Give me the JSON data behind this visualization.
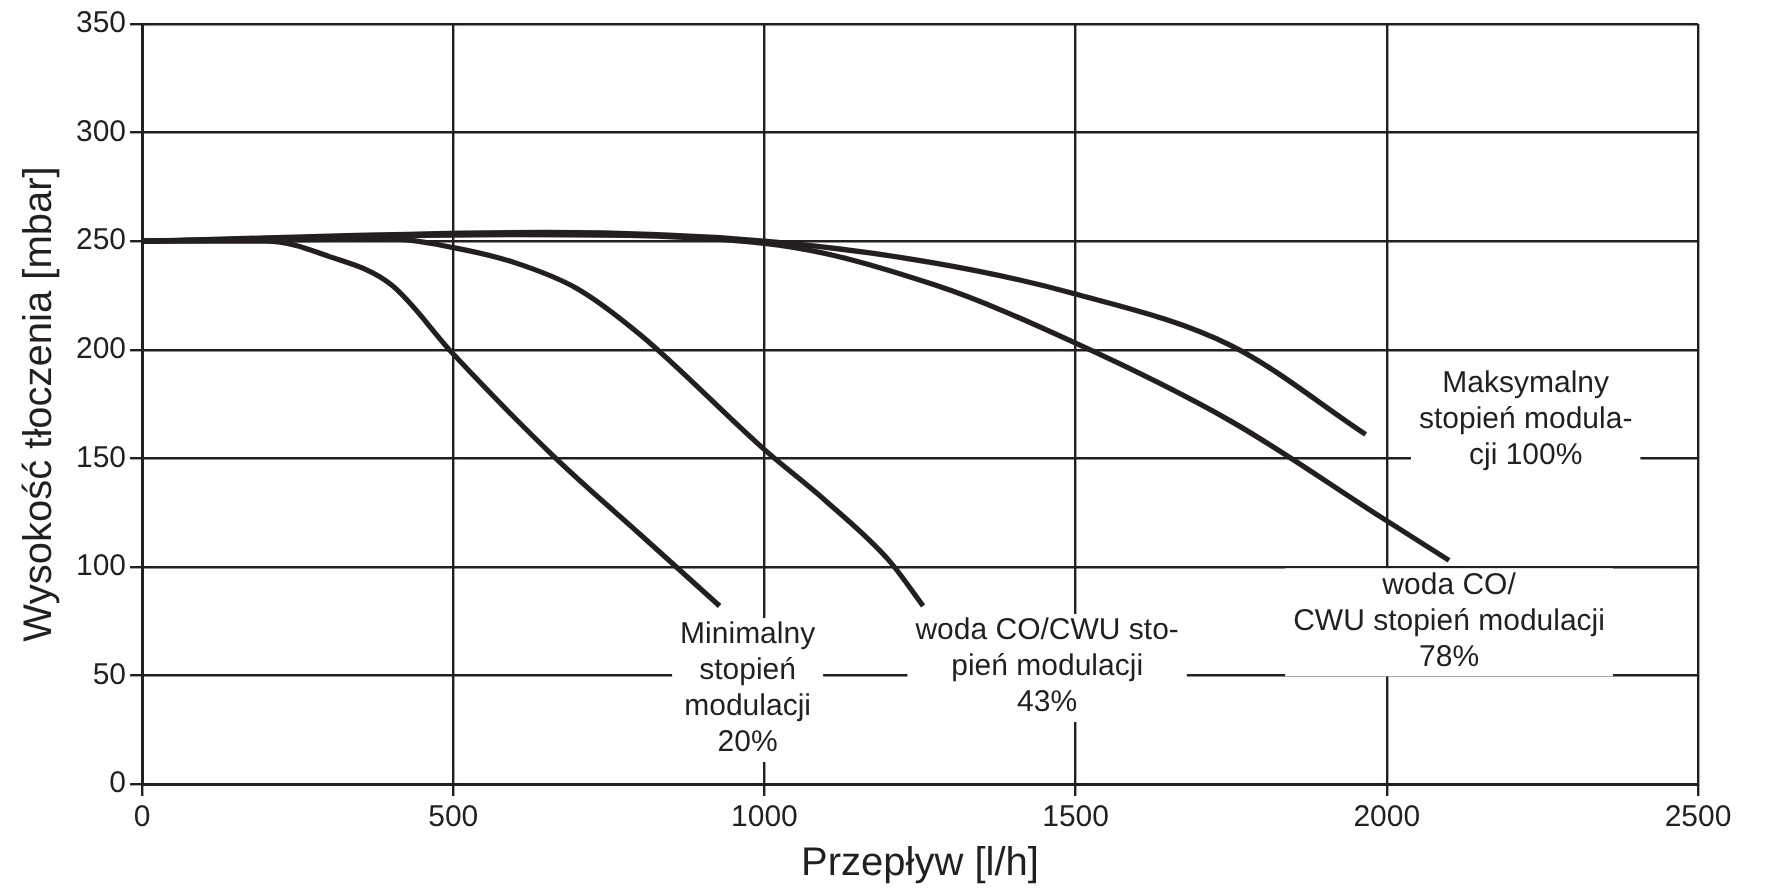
{
  "chart_data": {
    "type": "line",
    "xlabel": "Przepływ [l/h]",
    "ylabel": "Wysokość tłoczenia [mbar]",
    "xlim": [
      0,
      2500
    ],
    "xticks": [
      0,
      500,
      1000,
      1500,
      2000,
      2500
    ],
    "ylim": [
      0,
      350
    ],
    "yticks": [
      0,
      50,
      100,
      150,
      200,
      250,
      300,
      350
    ],
    "grid": true,
    "legend": false,
    "marker": "none",
    "line_style": "solid",
    "series": [
      {
        "color": "#231f20",
        "x": [
          0,
          200,
          300,
          400,
          500,
          661,
          800,
          928
        ],
        "values": [
          250,
          250,
          243,
          230,
          198,
          151,
          115,
          82
        ]
      },
      {
        "color": "#231f20",
        "x": [
          0,
          400,
          500,
          600,
          700,
          800,
          1000,
          1100,
          1200,
          1255
        ],
        "values": [
          250,
          251,
          247,
          240,
          228,
          207,
          154,
          130,
          103,
          82
        ]
      },
      {
        "color": "#231f20",
        "x": [
          0,
          600,
          1000,
          1272,
          1500,
          1750,
          1990,
          2100
        ],
        "values": [
          250,
          253,
          249,
          230,
          203,
          167,
          123,
          103
        ]
      },
      {
        "color": "#231f20",
        "x": [
          0,
          650,
          1000,
          1272,
          1495,
          1749,
          1966
        ],
        "values": [
          250,
          254,
          250,
          240,
          226,
          202,
          161
        ]
      }
    ],
    "annotations": [
      {
        "text": "Minimalny\nstopień\nmodulacji\n20%",
        "x": 928,
        "y": 82
      },
      {
        "text": "woda CO/CWU sto-\npień modulacji\n43%",
        "x": 1255,
        "y": 82
      },
      {
        "text": "woda CO/\nCWU stopień modulacji\n78%",
        "x": 2100,
        "y": 103
      },
      {
        "text": "Maksymalny\nstopień modula-\ncji 100%",
        "x": 1966,
        "y": 161
      }
    ]
  }
}
